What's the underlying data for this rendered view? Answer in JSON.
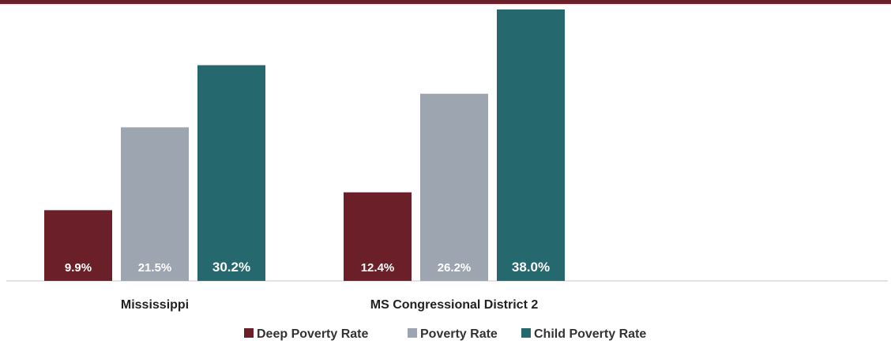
{
  "header": {
    "rule_color": "#6b1f29"
  },
  "chart_data": {
    "type": "bar",
    "categories": [
      "Mississippi",
      "MS Congressional District 2"
    ],
    "series": [
      {
        "name": "Deep Poverty Rate",
        "values": [
          9.9,
          12.4
        ],
        "labels": [
          "9.9%",
          "12.4%"
        ],
        "color": "#6b1f29"
      },
      {
        "name": "Poverty Rate",
        "values": [
          21.5,
          26.2
        ],
        "labels": [
          "21.5%",
          "26.2%"
        ],
        "color": "#9ca5b0"
      },
      {
        "name": "Child Poverty Rate",
        "values": [
          30.2,
          38.0
        ],
        "labels": [
          "30.2%",
          "38.0%"
        ],
        "color": "#25686d"
      }
    ],
    "ylim": [
      0,
      40
    ],
    "legend_position": "bottom-center",
    "grid": false,
    "data_label_color": "#ffffff"
  }
}
